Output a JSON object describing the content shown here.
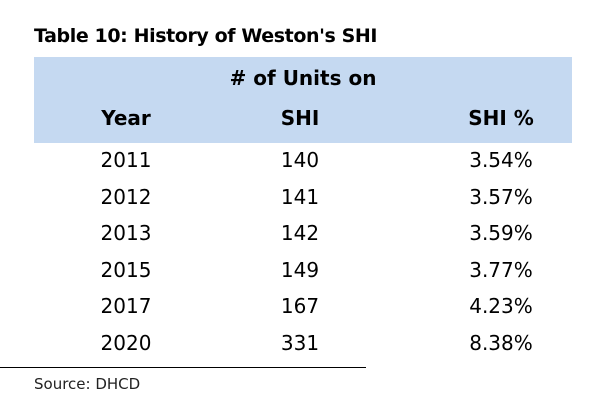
{
  "table": {
    "title": "Table 10: History of Weston's SHI",
    "header_group": "# of Units on",
    "columns": [
      "Year",
      "SHI",
      "SHI %"
    ],
    "rows": [
      {
        "year": "2011",
        "units": "140",
        "pct": "3.54%"
      },
      {
        "year": "2012",
        "units": "141",
        "pct": "3.57%"
      },
      {
        "year": "2013",
        "units": "142",
        "pct": "3.59%"
      },
      {
        "year": "2015",
        "units": "149",
        "pct": "3.77%"
      },
      {
        "year": "2017",
        "units": "167",
        "pct": "4.23%"
      },
      {
        "year": "2020",
        "units": "331",
        "pct": "8.38%"
      }
    ],
    "source": "Source: DHCD",
    "header_color": "#c5d9f1"
  }
}
